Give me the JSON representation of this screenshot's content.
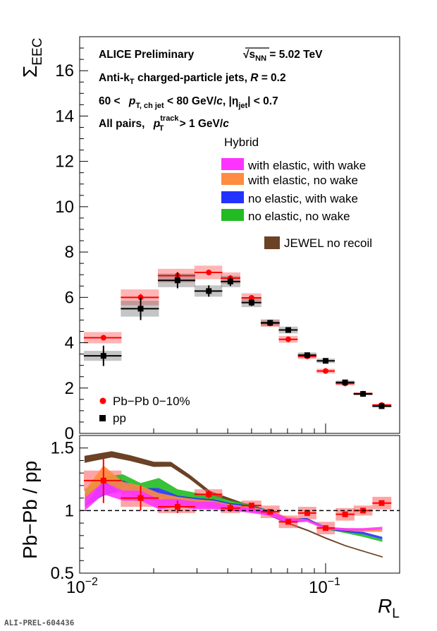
{
  "chart_data": [
    {
      "type": "scatter",
      "panel": "top",
      "xscale": "log",
      "xlim": [
        0.01,
        0.2
      ],
      "ylim": [
        0,
        17.5
      ],
      "yticks": [
        0,
        2,
        4,
        6,
        8,
        10,
        12,
        14,
        16
      ],
      "ylabel": "Σ",
      "ylabel_sub": "EEC",
      "annotations": {
        "line1a": "ALICE Preliminary",
        "line1b": "√s",
        "line1b_sub": "NN",
        "line1c": " = 5.02 TeV",
        "line2a": "Anti-k",
        "line2a_sub": "T",
        "line2b": " charged-particle jets, ",
        "line2c": "R",
        "line2d": " = 0.2",
        "line3a": "60 < ",
        "line3b": "p",
        "line3b_sub": "T, ch jet",
        "line3c": " < 80 GeV/",
        "line3d": "c",
        "line3e": ", |η",
        "line3e_sub": "jet",
        "line3f": "| < 0.7",
        "line4a": "All pairs, ",
        "line4b": "p",
        "line4b_sub": "T",
        "line4b_sup": "track",
        "line4c": " > 1 GeV/",
        "line4d": "c"
      },
      "legend_header": "Hybrid",
      "legend_models": [
        {
          "name": "with elastic, with wake",
          "color": "#ff33ff"
        },
        {
          "name": "with elastic, no wake",
          "color": "#ff8c40"
        },
        {
          "name": "no elastic, with wake",
          "color": "#2233ff"
        },
        {
          "name": "no elastic, no wake",
          "color": "#22bb22"
        },
        {
          "name": "JEWEL no recoil",
          "color": "#6b4226"
        }
      ],
      "series": [
        {
          "name": "Pb−Pb 0−10%",
          "color": "#ff0000",
          "marker": "circle",
          "x": [
            0.0125,
            0.0177,
            0.025,
            0.0335,
            0.041,
            0.05,
            0.0595,
            0.0705,
            0.0842,
            0.1,
            0.12,
            0.142,
            0.169
          ],
          "y": [
            4.22,
            6.0,
            6.96,
            7.1,
            6.85,
            5.98,
            4.85,
            4.15,
            3.4,
            2.75,
            2.2,
            1.75,
            1.25
          ],
          "xerr_lo": [
            0.0021,
            0.003,
            0.0042,
            0.0042,
            0.0035,
            0.0045,
            0.005,
            0.006,
            0.007,
            0.008,
            0.01,
            0.012,
            0.014
          ],
          "xerr_hi": [
            0.0023,
            0.0033,
            0.0045,
            0.0045,
            0.004,
            0.0048,
            0.0055,
            0.0065,
            0.0075,
            0.009,
            0.011,
            0.013,
            0.016
          ],
          "stat": [
            0.1,
            0.15,
            0.15,
            0.1,
            0.1,
            0.08,
            0.05,
            0.05,
            0.05,
            0.05,
            0.04,
            0.03,
            0.03
          ],
          "sys": [
            0.25,
            0.35,
            0.3,
            0.3,
            0.25,
            0.2,
            0.15,
            0.15,
            0.12,
            0.1,
            0.08,
            0.06,
            0.05
          ]
        },
        {
          "name": "pp",
          "color": "#000000",
          "marker": "square",
          "x": [
            0.0125,
            0.0177,
            0.025,
            0.0335,
            0.041,
            0.05,
            0.0595,
            0.0705,
            0.0842,
            0.1,
            0.12,
            0.142,
            0.169
          ],
          "y": [
            3.42,
            5.5,
            6.75,
            6.28,
            6.7,
            5.77,
            4.88,
            4.56,
            3.45,
            3.2,
            2.25,
            1.74,
            1.2
          ],
          "xerr_lo": [
            0.0021,
            0.003,
            0.0042,
            0.0042,
            0.0035,
            0.0045,
            0.005,
            0.006,
            0.007,
            0.008,
            0.01,
            0.012,
            0.014
          ],
          "xerr_hi": [
            0.0023,
            0.0033,
            0.0045,
            0.0045,
            0.004,
            0.0048,
            0.0055,
            0.0065,
            0.0075,
            0.009,
            0.011,
            0.013,
            0.016
          ],
          "stat": [
            0.45,
            0.5,
            0.35,
            0.25,
            0.2,
            0.15,
            0.1,
            0.08,
            0.06,
            0.05,
            0.04,
            0.03,
            0.03
          ],
          "sys": [
            0.22,
            0.35,
            0.3,
            0.25,
            0.25,
            0.2,
            0.15,
            0.15,
            0.12,
            0.1,
            0.08,
            0.06,
            0.05
          ]
        }
      ]
    },
    {
      "type": "line",
      "panel": "bottom",
      "xscale": "log",
      "xlim": [
        0.01,
        0.2
      ],
      "ylim": [
        0.5,
        1.6
      ],
      "yticks": [
        0.5,
        1,
        1.5
      ],
      "xtick_labels": [
        "10",
        "−2",
        "10",
        "−1"
      ],
      "xlabel": "R",
      "xlabel_sub": "L",
      "ylabel": "Pb−Pb / pp",
      "reference_line": 1,
      "ratio_points": {
        "x": [
          0.0125,
          0.0177,
          0.025,
          0.0335,
          0.041,
          0.05,
          0.0595,
          0.0705,
          0.0842,
          0.1,
          0.12,
          0.142,
          0.169
        ],
        "y": [
          1.24,
          1.1,
          1.03,
          1.13,
          1.02,
          1.04,
          0.99,
          0.91,
          0.98,
          0.86,
          0.97,
          1.0,
          1.06
        ],
        "sys": [
          0.08,
          0.07,
          0.05,
          0.04,
          0.04,
          0.04,
          0.05,
          0.05,
          0.05,
          0.05,
          0.05,
          0.04,
          0.05
        ],
        "stat": [
          0.18,
          0.1,
          0.05,
          0.03,
          0.03,
          0.02,
          0.02,
          0.02,
          0.02,
          0.02,
          0.02,
          0.02,
          0.02
        ]
      },
      "bands": [
        {
          "name": "with elastic, with wake",
          "color": "#ff33ff",
          "x": [
            0.0105,
            0.0125,
            0.015,
            0.0177,
            0.021,
            0.025,
            0.03,
            0.035,
            0.041,
            0.05,
            0.059,
            0.07,
            0.084,
            0.1,
            0.12,
            0.142,
            0.17
          ],
          "y": [
            1.05,
            1.18,
            1.12,
            1.12,
            1.05,
            1.06,
            1.04,
            1.04,
            1.02,
            1.0,
            0.98,
            0.92,
            0.92,
            0.86,
            0.85,
            0.85,
            0.86
          ],
          "err": [
            0.05,
            0.05,
            0.04,
            0.04,
            0.04,
            0.03,
            0.03,
            0.03,
            0.02,
            0.02,
            0.02,
            0.02,
            0.01,
            0.01,
            0.01,
            0.01,
            0.01
          ]
        },
        {
          "name": "with elastic, no wake",
          "color": "#ff8c40",
          "x": [
            0.0105,
            0.0125,
            0.015,
            0.0177,
            0.021,
            0.025,
            0.03,
            0.035,
            0.041,
            0.05,
            0.059,
            0.07,
            0.084,
            0.1,
            0.12,
            0.142,
            0.17
          ],
          "y": [
            1.1,
            1.3,
            1.18,
            1.16,
            1.1,
            1.08,
            1.06,
            1.05,
            1.03,
            1.01,
            0.98,
            0.93,
            0.92,
            0.86,
            0.85,
            0.84,
            0.84
          ],
          "err": [
            0.06,
            0.06,
            0.05,
            0.04,
            0.04,
            0.03,
            0.03,
            0.03,
            0.02,
            0.02,
            0.02,
            0.02,
            0.01,
            0.01,
            0.01,
            0.01,
            0.01
          ]
        },
        {
          "name": "no elastic, with wake",
          "color": "#2233ff",
          "x": [
            0.0105,
            0.0125,
            0.015,
            0.0177,
            0.021,
            0.025,
            0.03,
            0.035,
            0.041,
            0.05,
            0.059,
            0.07,
            0.084,
            0.1,
            0.12,
            0.142,
            0.17
          ],
          "y": [
            1.08,
            1.17,
            1.2,
            1.14,
            1.14,
            1.09,
            1.07,
            1.06,
            1.04,
            1.02,
            0.98,
            0.92,
            0.93,
            0.86,
            0.84,
            0.82,
            0.78
          ],
          "err": [
            0.05,
            0.05,
            0.04,
            0.04,
            0.04,
            0.03,
            0.03,
            0.03,
            0.02,
            0.02,
            0.02,
            0.02,
            0.01,
            0.01,
            0.01,
            0.01,
            0.01
          ]
        },
        {
          "name": "no elastic, no wake",
          "color": "#22bb22",
          "x": [
            0.0105,
            0.0125,
            0.015,
            0.0177,
            0.021,
            0.025,
            0.03,
            0.035,
            0.041,
            0.05,
            0.059,
            0.07,
            0.084,
            0.1,
            0.12,
            0.142,
            0.17
          ],
          "y": [
            1.12,
            1.22,
            1.25,
            1.18,
            1.22,
            1.14,
            1.11,
            1.09,
            1.06,
            1.03,
            0.98,
            0.92,
            0.93,
            0.86,
            0.83,
            0.8,
            0.76
          ],
          "err": [
            0.05,
            0.05,
            0.04,
            0.04,
            0.04,
            0.03,
            0.03,
            0.03,
            0.02,
            0.02,
            0.02,
            0.02,
            0.01,
            0.01,
            0.01,
            0.01,
            0.01
          ]
        }
      ],
      "jewel": {
        "name": "JEWEL no recoil",
        "color": "#6b4226",
        "x": [
          0.0105,
          0.0135,
          0.016,
          0.02,
          0.0235,
          0.028,
          0.034,
          0.042,
          0.05,
          0.06,
          0.07,
          0.085,
          0.1,
          0.12,
          0.145,
          0.17
        ],
        "y": [
          1.41,
          1.45,
          1.42,
          1.37,
          1.37,
          1.27,
          1.14,
          1.08,
          1.03,
          0.96,
          0.9,
          0.84,
          0.78,
          0.72,
          0.67,
          0.63
        ],
        "width": [
          0.025,
          0.022,
          0.02,
          0.018,
          0.016,
          0.014,
          0.012,
          0.008,
          0.006,
          0.005,
          0.004,
          0.003,
          0.003,
          0.002,
          0.002,
          0.002
        ]
      }
    }
  ],
  "footer": {
    "label": "ALI-PREL-604436"
  }
}
